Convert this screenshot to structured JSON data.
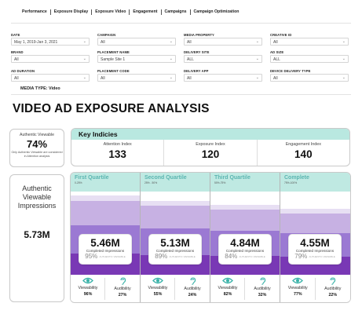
{
  "nav": {
    "tabs": [
      "Performance",
      "Exposure Display",
      "Exposure Video",
      "Engagement",
      "Campaigns",
      "Campaign Optimization"
    ]
  },
  "filters": [
    {
      "label": "DATE",
      "value": "May 1, 2019-Jan 3, 2021"
    },
    {
      "label": "CAMPAIGN",
      "value": "All"
    },
    {
      "label": "MEDIA PROPERTY",
      "value": "All"
    },
    {
      "label": "CREATIVE ID",
      "value": "All"
    },
    {
      "label": "BRAND",
      "value": "All"
    },
    {
      "label": "PLACEMENT NAME",
      "value": "Sample Site 1"
    },
    {
      "label": "DELIVERY SITE",
      "value": "ALL"
    },
    {
      "label": "AD SIZE",
      "value": "ALL"
    },
    {
      "label": "AD DURATION",
      "value": "All"
    },
    {
      "label": "PLACEMENT CODE",
      "value": "All"
    },
    {
      "label": "DELIVERY APP",
      "value": "All"
    },
    {
      "label": "DEVICE DELIVERY TYPE",
      "value": "All"
    }
  ],
  "media_type": "MEDIA TYPE: Video",
  "title": "VIDEO AD EXPOSURE ANALYSIS",
  "authentic_viewable": {
    "label": "Authentic Viewable",
    "value": "74%",
    "note": "Only Authentic Viewable are considered in Attention analysis"
  },
  "authentic_impressions": {
    "label": "Authentic Viewable Impressions",
    "value": "5.73M"
  },
  "key_indicies": {
    "title": "Key Indicies",
    "items": [
      {
        "label": "Attention Index",
        "value": "133"
      },
      {
        "label": "Exposure Index",
        "value": "120"
      },
      {
        "label": "Engagement Index",
        "value": "140"
      }
    ]
  },
  "quartiles": [
    {
      "name": "First Quartile",
      "range": "0-25%",
      "value": "5.46M",
      "completed_label": "Completed Impressions",
      "pct": "95%",
      "pct_sub": "AUTHENTIC VIEWABLE",
      "viewability_label": "Viewability",
      "viewability": "96%",
      "audibility_label": "Audibility",
      "audibility": "27%",
      "level": 0.95
    },
    {
      "name": "Second Quartile",
      "range": "25% - 50%",
      "value": "5.13M",
      "completed_label": "Completed Impressions",
      "pct": "89%",
      "pct_sub": "AUTHENTIC VIEWABLE",
      "viewability_label": "Viewability",
      "viewability": "55%",
      "audibility_label": "Audibility",
      "audibility": "24%",
      "level": 0.89
    },
    {
      "name": "Third Quartile",
      "range": "50%-75%",
      "value": "4.84M",
      "completed_label": "Completed Impressions",
      "pct": "84%",
      "pct_sub": "AUTHENTIC VIEWABLE",
      "viewability_label": "Viewability",
      "viewability": "82%",
      "audibility_label": "Audibility",
      "audibility": "32%",
      "level": 0.84
    },
    {
      "name": "Complete",
      "range": "75%-100%",
      "value": "4.55M",
      "completed_label": "Completed Impressions",
      "pct": "79%",
      "pct_sub": "AUTHENTIC VIEWABLE",
      "viewability_label": "Viewability",
      "viewability": "77%",
      "audibility_label": "Audibility",
      "audibility": "22%",
      "level": 0.79
    }
  ],
  "icons": {
    "viewability": "eye-icon",
    "audibility": "ear-icon"
  },
  "colors": {
    "teal_header": "#bfe9e2",
    "quartile_title": "#5ab5b0",
    "purple_dark": "#7938b5",
    "purple_mid": "#9b79d3",
    "purple_light": "#c7b1e3"
  }
}
